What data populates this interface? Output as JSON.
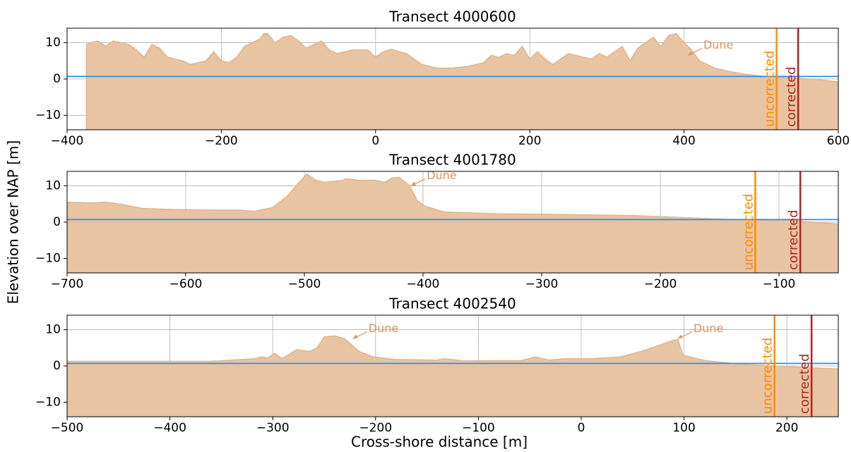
{
  "xlabel": "Cross-shore distance [m]",
  "ylabel": "Elevation over NAP [m]",
  "chart_data": [
    {
      "type": "area",
      "title": "Transect 4000600",
      "x": [
        -375,
        -370,
        -360,
        -350,
        -340,
        -320,
        -310,
        -300,
        -290,
        -280,
        -270,
        -250,
        -240,
        -220,
        -210,
        -200,
        -190,
        -180,
        -170,
        -150,
        -145,
        -140,
        -130,
        -120,
        -110,
        -100,
        -90,
        -80,
        -70,
        -60,
        -50,
        -30,
        -10,
        0,
        10,
        20,
        40,
        60,
        80,
        100,
        120,
        140,
        150,
        160,
        170,
        180,
        190,
        200,
        210,
        220,
        230,
        250,
        260,
        280,
        290,
        300,
        320,
        330,
        340,
        360,
        370,
        380,
        390,
        400,
        410,
        420,
        440,
        460,
        480,
        500,
        520,
        540,
        560,
        580,
        600
      ],
      "series": [
        {
          "color": "#e8c4a2",
          "values": [
            9.5,
            10,
            10.5,
            9,
            10.5,
            9.5,
            8,
            6,
            9.5,
            8.5,
            6,
            5,
            4,
            5,
            7.5,
            5,
            4.5,
            6,
            9,
            11,
            12.5,
            12.5,
            10,
            11.5,
            12,
            10.5,
            8.5,
            9.5,
            10.5,
            8,
            7,
            8,
            8,
            6,
            7.5,
            8.2,
            7,
            4,
            3,
            3,
            3.5,
            4.5,
            6.5,
            6,
            7,
            6.5,
            9,
            5.5,
            7.5,
            5.5,
            4,
            7,
            6.5,
            5.5,
            7,
            6,
            9,
            5,
            8.5,
            11.5,
            9,
            12,
            12.5,
            10,
            8,
            5,
            3,
            2,
            1.3,
            0.8,
            0.5,
            0.3,
            0,
            -0.3,
            -0.8
          ]
        }
      ],
      "hline": {
        "y": 0.7,
        "color": "#2e8ee6"
      },
      "vlines": [
        {
          "label": "uncorrected",
          "x": 520,
          "color": "#ff8c00"
        },
        {
          "label": "corrected",
          "x": 548,
          "color": "#b22222"
        }
      ],
      "annotations": [
        {
          "text": "Dune",
          "x": 405,
          "y": 6.5
        }
      ],
      "xlim": [
        -400,
        600
      ],
      "ylim": [
        -14,
        14
      ],
      "xticks": [
        {
          "value": -400,
          "label": "−400"
        },
        {
          "value": -200,
          "label": "−200"
        },
        0,
        200,
        400,
        600
      ],
      "yticks": [
        {
          "value": -10,
          "label": "−10"
        },
        0,
        10
      ],
      "grid": true
    },
    {
      "type": "area",
      "title": "Transect 4001780",
      "x": [
        -700,
        -679,
        -667,
        -652,
        -637,
        -613,
        -577,
        -554,
        -542,
        -527,
        -515,
        -507,
        -498,
        -490,
        -483,
        -468,
        -465,
        -453,
        -441,
        -432,
        -426,
        -420,
        -411,
        -405,
        -399,
        -382,
        -340,
        -280,
        -221,
        -161,
        -132,
        -90,
        -72,
        -50
      ],
      "series": [
        {
          "color": "#e8c4a2",
          "values": [
            5.5,
            5.3,
            5.5,
            4.8,
            3.8,
            3.5,
            3.3,
            3.3,
            3,
            4,
            7,
            10,
            13.3,
            11.5,
            11,
            11.5,
            12,
            11.5,
            11.6,
            11,
            12.2,
            12.3,
            10,
            6,
            4.5,
            2.8,
            2.3,
            2.1,
            1.8,
            1,
            0.6,
            0.5,
            0,
            -0.5
          ]
        }
      ],
      "hline": {
        "y": 0.7,
        "color": "#2e8ee6"
      },
      "vlines": [
        {
          "label": "uncorrected",
          "x": -120,
          "color": "#ff8c00"
        },
        {
          "label": "corrected",
          "x": -82,
          "color": "#b22222"
        }
      ],
      "annotations": [
        {
          "text": "Dune",
          "x": -410,
          "y": 10
        }
      ],
      "xlim": [
        -700,
        -50
      ],
      "ylim": [
        -14,
        14
      ],
      "xticks": [
        {
          "value": -700,
          "label": "−700"
        },
        {
          "value": -600,
          "label": "−600"
        },
        {
          "value": -500,
          "label": "−500"
        },
        {
          "value": -400,
          "label": "−400"
        },
        {
          "value": -300,
          "label": "−300"
        },
        {
          "value": -200,
          "label": "−200"
        },
        {
          "value": -100,
          "label": "−100"
        }
      ],
      "yticks": [
        {
          "value": -10,
          "label": "−10"
        },
        0,
        10
      ],
      "grid": true
    },
    {
      "type": "area",
      "title": "Transect 4002540",
      "x": [
        -500,
        -360,
        -318,
        -311,
        -305,
        -298,
        -291,
        -277,
        -264,
        -257,
        -250,
        -240,
        -230,
        -216,
        -202,
        -181,
        -140,
        -134,
        -113,
        -58,
        -45,
        -31,
        -17,
        10,
        38,
        58,
        79,
        89,
        94,
        99,
        120,
        154,
        188,
        223,
        250
      ],
      "series": [
        {
          "color": "#e8c4a2",
          "values": [
            1.3,
            1.3,
            2,
            2.5,
            2.2,
            3.5,
            2,
            4.5,
            4,
            5,
            8,
            8.3,
            7.5,
            4,
            2.5,
            1.8,
            1.6,
            2,
            1.4,
            1.5,
            2.5,
            1.6,
            2,
            2,
            2.5,
            4,
            6,
            7,
            7.3,
            3,
            1.5,
            0.5,
            0,
            -0.5,
            -0.8
          ]
        }
      ],
      "hline": {
        "y": 0.7,
        "color": "#2e8ee6"
      },
      "vlines": [
        {
          "label": "uncorrected",
          "x": 188,
          "color": "#ff8c00"
        },
        {
          "label": "corrected",
          "x": 224,
          "color": "#b22222"
        }
      ],
      "annotations": [
        {
          "text": "Dune",
          "x": -222,
          "y": 7.5
        },
        {
          "text": "Dune",
          "x": 94,
          "y": 7.5
        }
      ],
      "xlim": [
        -500,
        250
      ],
      "ylim": [
        -14,
        14
      ],
      "xticks": [
        {
          "value": -500,
          "label": "−500"
        },
        {
          "value": -400,
          "label": "−400"
        },
        {
          "value": -300,
          "label": "−300"
        },
        {
          "value": -200,
          "label": "−200"
        },
        {
          "value": -100,
          "label": "−100"
        },
        0,
        100,
        200
      ],
      "yticks": [
        {
          "value": -10,
          "label": "−10"
        },
        0,
        10
      ],
      "grid": true
    }
  ]
}
